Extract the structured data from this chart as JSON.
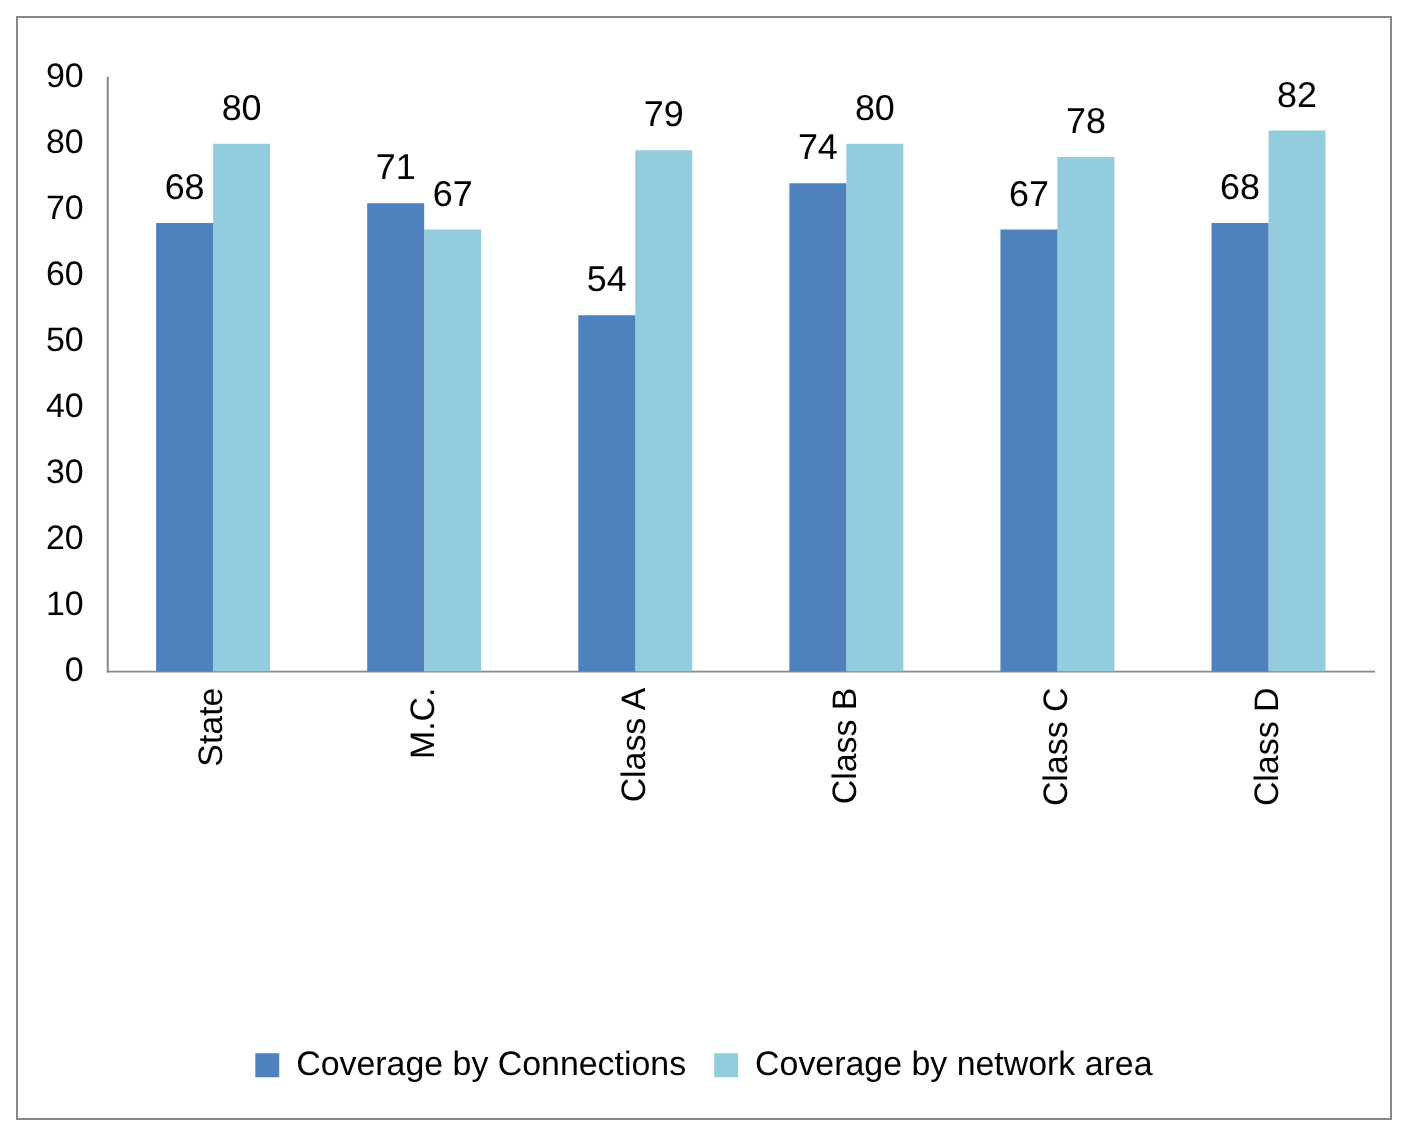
{
  "chart_data": {
    "type": "bar",
    "categories": [
      "State",
      "M.C.",
      "Class A",
      "Class B",
      "Class C",
      "Class D"
    ],
    "series": [
      {
        "name": "Coverage by Connections",
        "color": "#4f81bd",
        "values": [
          68,
          71,
          54,
          74,
          67,
          68
        ]
      },
      {
        "name": "Coverage by network area",
        "color": "#93cddd",
        "values": [
          80,
          67,
          79,
          80,
          78,
          82
        ]
      }
    ],
    "ylim": [
      0,
      90
    ],
    "yticks": [
      0,
      10,
      20,
      30,
      40,
      50,
      60,
      70,
      80,
      90
    ],
    "grid": false,
    "legend": "bottom",
    "data_labels": true
  }
}
